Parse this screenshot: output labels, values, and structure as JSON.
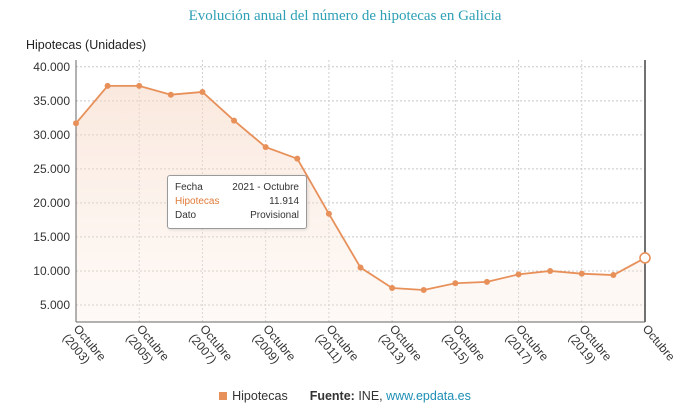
{
  "chart_data": {
    "type": "area",
    "title": "Evolución anual del número de hipotecas en Galicia",
    "ylabel": "Hipotecas (Unidades)",
    "ylim": [
      2500,
      41000
    ],
    "yticks": [
      "5.000",
      "10.000",
      "15.000",
      "20.000",
      "25.000",
      "30.000",
      "35.000",
      "40.000"
    ],
    "ytick_values": [
      5000,
      10000,
      15000,
      20000,
      25000,
      30000,
      35000,
      40000
    ],
    "xtick_labels": [
      {
        "line1": "Octubre",
        "line2": "(2003)"
      },
      {
        "line1": "Octubre",
        "line2": "(2005)"
      },
      {
        "line1": "Octubre",
        "line2": "(2007)"
      },
      {
        "line1": "Octubre",
        "line2": "(2009)"
      },
      {
        "line1": "Octubre",
        "line2": "(2011)"
      },
      {
        "line1": "Octubre",
        "line2": "(2013)"
      },
      {
        "line1": "Octubre",
        "line2": "(2015)"
      },
      {
        "line1": "Octubre",
        "line2": "(2017)"
      },
      {
        "line1": "Octubre",
        "line2": "(2019)"
      },
      {
        "line1": "Octubre",
        "line2": ""
      }
    ],
    "grid": true,
    "series": [
      {
        "name": "Hipotecas",
        "color": "#e8905a",
        "x": [
          2003,
          2004,
          2005,
          2006,
          2007,
          2008,
          2009,
          2010,
          2011,
          2012,
          2013,
          2014,
          2015,
          2016,
          2017,
          2018,
          2019,
          2020,
          2021
        ],
        "values": [
          31700,
          37200,
          37200,
          35900,
          36300,
          32100,
          28200,
          26500,
          18400,
          10500,
          7500,
          7200,
          8200,
          8400,
          9500,
          10000,
          9600,
          9400,
          11914
        ]
      }
    ],
    "tooltip": {
      "rows": [
        {
          "key": "Fecha",
          "value": "2021 - Octubre"
        },
        {
          "key": "Hipotecas",
          "value": "11.914"
        },
        {
          "key": "Dato",
          "value": "Provisional"
        }
      ]
    }
  },
  "footer": {
    "legend_label": "Hipotecas",
    "source_prefix": "Fuente:",
    "source_text": " INE, ",
    "source_link": "www.epdata.es"
  }
}
